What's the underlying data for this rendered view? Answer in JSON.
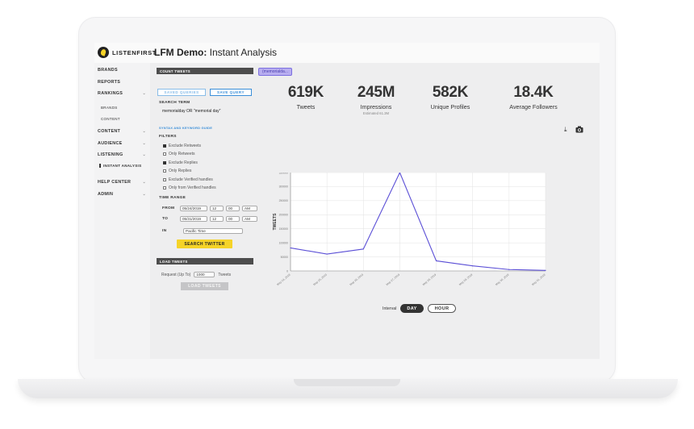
{
  "brand": {
    "name": "LISTENFIRST"
  },
  "page": {
    "title_bold": "LFM Demo:",
    "title_rest": " Instant Analysis"
  },
  "sidebar": {
    "items": [
      {
        "label": "BRANDS",
        "chevron": false
      },
      {
        "label": "REPORTS",
        "chevron": false
      },
      {
        "label": "RANKINGS",
        "chevron": true
      },
      {
        "label": "BRANDS",
        "chevron": false,
        "sub": true
      },
      {
        "label": "CONTENT",
        "chevron": false,
        "sub": true
      },
      {
        "label": "CONTENT",
        "chevron": true
      },
      {
        "label": "AUDIENCE",
        "chevron": true
      },
      {
        "label": "LISTENING",
        "chevron": true
      },
      {
        "label": "INSTANT ANALYSIS",
        "chevron": false,
        "active": true
      },
      {
        "label": "HELP CENTER",
        "chevron": true
      },
      {
        "label": "ADMIN",
        "chevron": true
      }
    ]
  },
  "count_panel": {
    "header": "COUNT TWEETS",
    "saved_queries": "SAVED QUERIES",
    "save_query": "SAVE QUERY",
    "search_term_label": "SEARCH TERM",
    "search_term_value": "memorialday OR \"memorial day\"",
    "syntax_link": "SYNTAX AND KEYWORD GUIDE",
    "filters_label": "FILTERS",
    "filters": [
      {
        "label": "Exclude Retweets",
        "checked": true
      },
      {
        "label": "Only Retweets",
        "checked": false
      },
      {
        "label": "Exclude Replies",
        "checked": true
      },
      {
        "label": "Only Replies",
        "checked": false
      },
      {
        "label": "Exclude Verified handles",
        "checked": false
      },
      {
        "label": "Only from Verified handles",
        "checked": false
      }
    ],
    "time_range_label": "TIME RANGE",
    "from_label": "FROM",
    "from": {
      "date": "05/24/2019",
      "hour": "12",
      "minute": "00",
      "ampm": "AM"
    },
    "to_label": "TO",
    "to": {
      "date": "05/31/2019",
      "hour": "12",
      "minute": "00",
      "ampm": "AM"
    },
    "in_label": "IN",
    "timezone": "Pacific Time",
    "search_button": "SEARCH TWITTER"
  },
  "load_panel": {
    "header": "LOAD TWEETS",
    "request_label": "Request (Up To)",
    "request_value": "1000",
    "tweets_suffix": "Tweets",
    "load_button": "LOAD TWEETS"
  },
  "query_tag": "(memorialda...",
  "stats": [
    {
      "value": "619K",
      "label": "Tweets",
      "sub": ""
    },
    {
      "value": "245M",
      "label": "Impressions",
      "sub": "Estimated 61.3M"
    },
    {
      "value": "582K",
      "label": "Unique Profiles",
      "sub": ""
    },
    {
      "value": "18.4K",
      "label": "Average Followers",
      "sub": ""
    }
  ],
  "icons": {
    "download": "download-icon",
    "camera": "camera-icon"
  },
  "interval": {
    "label": "Interval",
    "day": "DAY",
    "hour": "HOUR",
    "selected": "DAY"
  },
  "colors": {
    "line": "#5b4fd6",
    "accent_yellow": "#f5d328",
    "link_blue": "#3b8fd9"
  },
  "chart_data": {
    "type": "line",
    "ylabel": "TWEETS",
    "x": [
      "May 24, 2019",
      "May 25, 2019",
      "May 26, 2019",
      "May 27, 2019",
      "May 28, 2019",
      "May 29, 2019",
      "May 30, 2019",
      "May 31, 2019"
    ],
    "y_ticks": [
      "0",
      "50000",
      "100000",
      "150000",
      "200000",
      "250000",
      "300000",
      "350000"
    ],
    "ylim": [
      0,
      350000
    ],
    "series": [
      {
        "values": [
          82000,
          60000,
          78000,
          350000,
          36000,
          18000,
          5000,
          2000
        ]
      }
    ],
    "grid": true
  }
}
